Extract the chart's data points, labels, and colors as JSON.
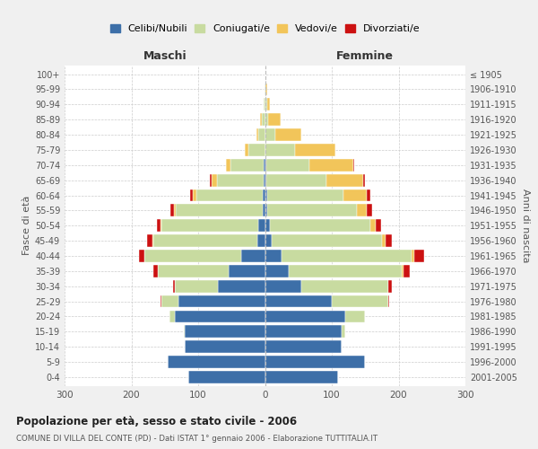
{
  "age_groups": [
    "0-4",
    "5-9",
    "10-14",
    "15-19",
    "20-24",
    "25-29",
    "30-34",
    "35-39",
    "40-44",
    "45-49",
    "50-54",
    "55-59",
    "60-64",
    "65-69",
    "70-74",
    "75-79",
    "80-84",
    "85-89",
    "90-94",
    "95-99",
    "100+"
  ],
  "birth_years": [
    "2001-2005",
    "1996-2000",
    "1991-1995",
    "1986-1990",
    "1981-1985",
    "1976-1980",
    "1971-1975",
    "1966-1970",
    "1961-1965",
    "1956-1960",
    "1951-1955",
    "1946-1950",
    "1941-1945",
    "1936-1940",
    "1931-1935",
    "1926-1930",
    "1921-1925",
    "1916-1920",
    "1911-1915",
    "1906-1910",
    "≤ 1905"
  ],
  "male": {
    "celibi": [
      115,
      145,
      120,
      120,
      135,
      130,
      70,
      55,
      35,
      12,
      10,
      3,
      3,
      2,
      2,
      0,
      0,
      0,
      0,
      0,
      0
    ],
    "coniugati": [
      0,
      0,
      0,
      2,
      8,
      25,
      65,
      105,
      145,
      155,
      145,
      130,
      100,
      70,
      50,
      25,
      10,
      5,
      2,
      1,
      0
    ],
    "vedovi": [
      0,
      0,
      0,
      0,
      0,
      0,
      0,
      0,
      1,
      1,
      2,
      3,
      5,
      8,
      6,
      5,
      3,
      2,
      0,
      0,
      0
    ],
    "divorziati": [
      0,
      0,
      0,
      0,
      0,
      1,
      3,
      7,
      8,
      8,
      5,
      5,
      4,
      2,
      0,
      0,
      0,
      0,
      0,
      0,
      0
    ]
  },
  "female": {
    "nubili": [
      110,
      150,
      115,
      115,
      120,
      100,
      55,
      35,
      25,
      10,
      8,
      3,
      3,
      2,
      2,
      0,
      0,
      0,
      0,
      0,
      0
    ],
    "coniugate": [
      0,
      0,
      0,
      5,
      30,
      85,
      130,
      170,
      195,
      165,
      150,
      135,
      115,
      90,
      65,
      45,
      15,
      5,
      3,
      1,
      0
    ],
    "vedove": [
      0,
      0,
      0,
      0,
      0,
      0,
      0,
      2,
      3,
      5,
      8,
      15,
      35,
      55,
      65,
      60,
      40,
      18,
      5,
      2,
      0
    ],
    "divorziate": [
      0,
      0,
      0,
      0,
      0,
      1,
      5,
      10,
      15,
      10,
      8,
      8,
      5,
      2,
      2,
      0,
      0,
      0,
      0,
      0,
      0
    ]
  },
  "color_celibi": "#3d6fa8",
  "color_coniugati": "#c8dba0",
  "color_vedovi": "#f2c55a",
  "color_divorziati": "#cc1111",
  "xlim": 300,
  "title": "Popolazione per età, sesso e stato civile - 2006",
  "subtitle": "COMUNE DI VILLA DEL CONTE (PD) - Dati ISTAT 1° gennaio 2006 - Elaborazione TUTTITALIA.IT",
  "ylabel_left": "Fasce di età",
  "ylabel_right": "Anni di nascita",
  "xlabel_left": "Maschi",
  "xlabel_right": "Femmine",
  "bg_color": "#f0f0f0",
  "plot_bg_color": "#ffffff"
}
